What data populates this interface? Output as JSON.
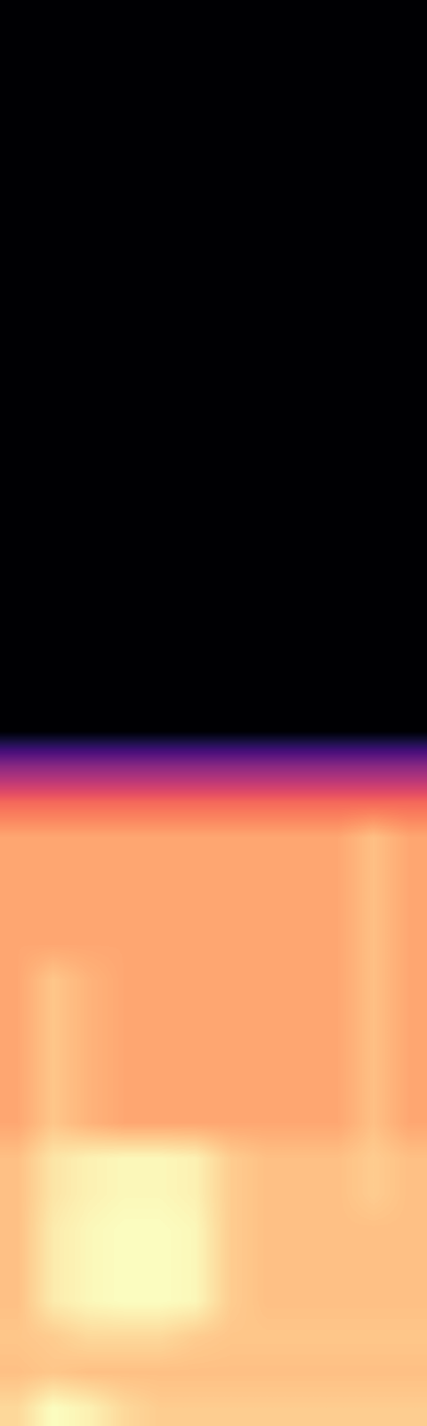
{
  "chart_data": {
    "type": "heatmap",
    "color": "magma",
    "tick_labels": false,
    "cells": [
      [
        0,
        0,
        0,
        0,
        0,
        0,
        0,
        0,
        0,
        0,
        0,
        0
      ],
      [
        0,
        0,
        0,
        0,
        0,
        0,
        0,
        0,
        0,
        0,
        0,
        0
      ],
      [
        0,
        0,
        0,
        0,
        0,
        0,
        0,
        0,
        0,
        0,
        0,
        0
      ],
      [
        0,
        0,
        0,
        0,
        0,
        0,
        0,
        0,
        0,
        0,
        0,
        0
      ],
      [
        0,
        0,
        0,
        0,
        0,
        0,
        0,
        0,
        0,
        0,
        0,
        0
      ],
      [
        0,
        0,
        0,
        0,
        0,
        0,
        0,
        0,
        0,
        0,
        0,
        0
      ],
      [
        0,
        0,
        0,
        0,
        0,
        0,
        0,
        0,
        0,
        0,
        0,
        0
      ],
      [
        0,
        0,
        0,
        0,
        0,
        0,
        0,
        0,
        0,
        0,
        0,
        0
      ],
      [
        0,
        0,
        0,
        0,
        0,
        0,
        0,
        0,
        0,
        0,
        0,
        0
      ],
      [
        0,
        0,
        0,
        0,
        0,
        0,
        0,
        0,
        0,
        0,
        0,
        0
      ],
      [
        0,
        0,
        0,
        0,
        0,
        0,
        0,
        0,
        0,
        0,
        0,
        0
      ],
      [
        0,
        0,
        0,
        0,
        0,
        0,
        0,
        0,
        0,
        0,
        0,
        0
      ],
      [
        0,
        0,
        0,
        0,
        0,
        0,
        0,
        0,
        0,
        0,
        0,
        0
      ],
      [
        0,
        0,
        0,
        0,
        0,
        0,
        0,
        0,
        0,
        0,
        0,
        0
      ],
      [
        0,
        0,
        0,
        0,
        0,
        0,
        0,
        0,
        0,
        0,
        0,
        0
      ],
      [
        0,
        0,
        0,
        0,
        0,
        0,
        0,
        0,
        0,
        0,
        0,
        0
      ],
      [
        0,
        0,
        0,
        0,
        0,
        0,
        0,
        0,
        0,
        0,
        0,
        0
      ],
      [
        0,
        0,
        0,
        0,
        0,
        0,
        0,
        0,
        0,
        0,
        0,
        0
      ],
      [
        0,
        0,
        0,
        0,
        0,
        0,
        0,
        0,
        0,
        0,
        0,
        0
      ],
      [
        0,
        0,
        0,
        0,
        0,
        0,
        0,
        0,
        0,
        0,
        0,
        0
      ],
      [
        0,
        0,
        0,
        0,
        0,
        0,
        0,
        0,
        0,
        0,
        0,
        0
      ],
      [
        30,
        30,
        30,
        30,
        30,
        30,
        30,
        30,
        30,
        30,
        30,
        30
      ],
      [
        52,
        52,
        52,
        52,
        52,
        52,
        52,
        52,
        52,
        52,
        52,
        52
      ],
      [
        62,
        62,
        62,
        62,
        62,
        62,
        62,
        62,
        62,
        62,
        66,
        62
      ],
      [
        62,
        62,
        62,
        62,
        62,
        62,
        62,
        62,
        62,
        62,
        66,
        62
      ],
      [
        62,
        62,
        62,
        62,
        62,
        62,
        62,
        62,
        62,
        62,
        66,
        62
      ],
      [
        62,
        62,
        62,
        62,
        62,
        62,
        62,
        62,
        62,
        62,
        66,
        62
      ],
      [
        62,
        67,
        64,
        62,
        62,
        62,
        62,
        62,
        62,
        62,
        66,
        62
      ],
      [
        62,
        67,
        64,
        62,
        62,
        62,
        62,
        62,
        62,
        62,
        66,
        62
      ],
      [
        62,
        67,
        64,
        62,
        62,
        62,
        62,
        62,
        62,
        62,
        66,
        62
      ],
      [
        62,
        67,
        64,
        62,
        62,
        62,
        62,
        62,
        62,
        62,
        66,
        62
      ],
      [
        62,
        67,
        64,
        62,
        62,
        62,
        62,
        62,
        62,
        62,
        66,
        62
      ],
      [
        66,
        72,
        74,
        75,
        75,
        74,
        68,
        66,
        66,
        66,
        68,
        66
      ],
      [
        66,
        72,
        74,
        75,
        75,
        74,
        68,
        66,
        66,
        66,
        68,
        66
      ],
      [
        66,
        73,
        75,
        76,
        76,
        75,
        68,
        66,
        66,
        66,
        66,
        66
      ],
      [
        66,
        73,
        75,
        76,
        76,
        75,
        68,
        66,
        66,
        66,
        66,
        66
      ],
      [
        66,
        73,
        75,
        76,
        76,
        75,
        68,
        66,
        66,
        66,
        66,
        66
      ],
      [
        67,
        68,
        70,
        70,
        70,
        68,
        67,
        67,
        67,
        67,
        67,
        67
      ],
      [
        66,
        67,
        66,
        66,
        66,
        66,
        66,
        66,
        66,
        66,
        66,
        66
      ],
      [
        70,
        76,
        74,
        70,
        68,
        68,
        68,
        68,
        68,
        68,
        68,
        68
      ]
    ]
  }
}
